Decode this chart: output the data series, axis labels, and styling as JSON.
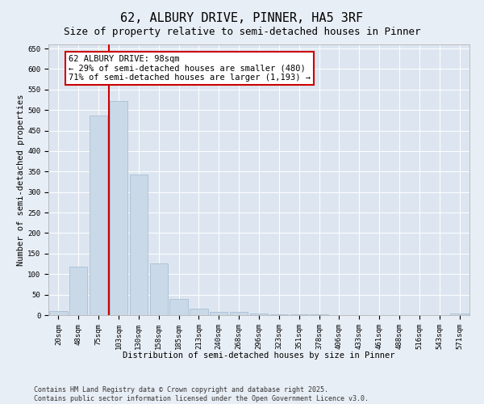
{
  "title": "62, ALBURY DRIVE, PINNER, HA5 3RF",
  "subtitle": "Size of property relative to semi-detached houses in Pinner",
  "xlabel": "Distribution of semi-detached houses by size in Pinner",
  "ylabel": "Number of semi-detached properties",
  "categories": [
    "20sqm",
    "48sqm",
    "75sqm",
    "103sqm",
    "130sqm",
    "158sqm",
    "185sqm",
    "213sqm",
    "240sqm",
    "268sqm",
    "296sqm",
    "323sqm",
    "351sqm",
    "378sqm",
    "406sqm",
    "433sqm",
    "461sqm",
    "488sqm",
    "516sqm",
    "543sqm",
    "571sqm"
  ],
  "values": [
    10,
    118,
    487,
    522,
    342,
    126,
    40,
    15,
    8,
    8,
    4,
    2,
    1,
    1,
    0,
    0,
    0,
    0,
    0,
    0,
    4
  ],
  "bar_color": "#c9d9e8",
  "bar_edge_color": "#a0b8d0",
  "vline_color": "#cc0000",
  "vline_x_index": 3,
  "annotation_line1": "62 ALBURY DRIVE: 98sqm",
  "annotation_line2": "← 29% of semi-detached houses are smaller (480)",
  "annotation_line3": "71% of semi-detached houses are larger (1,193) →",
  "annotation_box_color": "#ffffff",
  "annotation_box_edge_color": "#cc0000",
  "ylim": [
    0,
    660
  ],
  "yticks": [
    0,
    50,
    100,
    150,
    200,
    250,
    300,
    350,
    400,
    450,
    500,
    550,
    600,
    650
  ],
  "footer_line1": "Contains HM Land Registry data © Crown copyright and database right 2025.",
  "footer_line2": "Contains public sector information licensed under the Open Government Licence v3.0.",
  "bg_color": "#e8eef5",
  "plot_bg_color": "#dde6f0",
  "title_fontsize": 11,
  "subtitle_fontsize": 9,
  "axis_label_fontsize": 7.5,
  "tick_fontsize": 6.5,
  "annotation_fontsize": 7.5,
  "footer_fontsize": 6
}
